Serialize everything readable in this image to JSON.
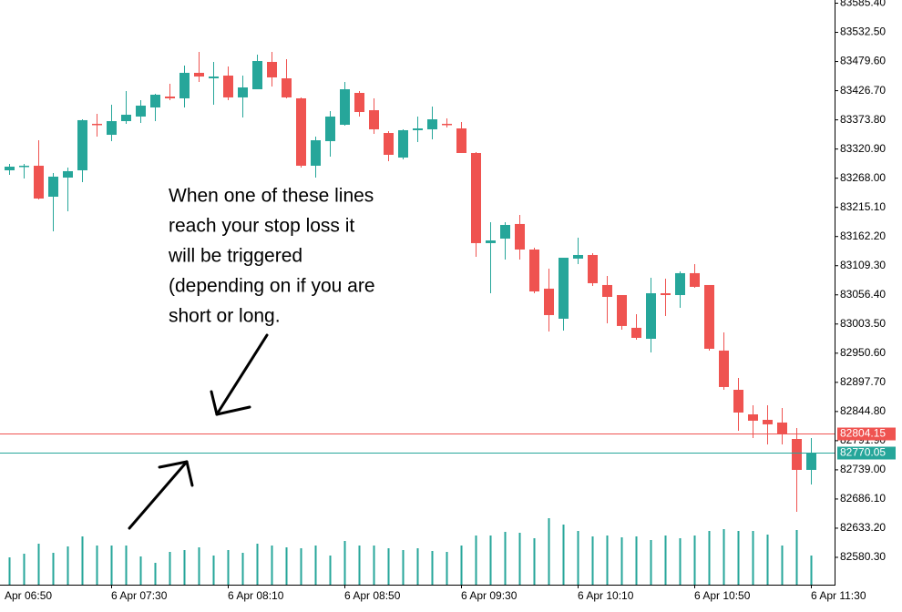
{
  "chart_data": {
    "type": "candlestick",
    "categories": [
      "Apr 06:50",
      null,
      null,
      null,
      null,
      null,
      null,
      null,
      "6 Apr 07:30",
      null,
      null,
      null,
      null,
      null,
      null,
      null,
      "6 Apr 08:10",
      null,
      null,
      null,
      null,
      null,
      null,
      null,
      "6 Apr 08:50",
      null,
      null,
      null,
      null,
      null,
      null,
      null,
      "6 Apr 09:30",
      null,
      null,
      null,
      null,
      null,
      null,
      null,
      "6 Apr 10:10",
      null,
      null,
      null,
      null,
      null,
      null,
      null,
      "6 Apr 10:50",
      null,
      null,
      null,
      null,
      null,
      null,
      null,
      "6 Apr 11:30"
    ],
    "open": [
      null,
      83282.3,
      83288.9,
      83290.6,
      83234.4,
      83269.1,
      83282.3,
      83366.6,
      83346.7,
      83371.5,
      83379.8,
      83396.3,
      83416.1,
      83412.8,
      83459.1,
      83449.1,
      83454.1,
      83414.5,
      83429.3,
      83478.9,
      83449.1,
      83412.8,
      83290.6,
      83335.2,
      83364.9,
      83422.7,
      83391.3,
      83350.0,
      83305.4,
      83355.0,
      83356.6,
      83366.6,
      83358.3,
      83313.7,
      83150.2,
      83158.4,
      83184.9,
      83138.6,
      83067.6,
      83013.1,
      83122.1,
      83128.7,
      83074.2,
      83056.0,
      82996.6,
      82976.7,
      83059.3,
      83056.0,
      83095.7,
      83074.2,
      82955.3,
      82884.2,
      82839.6,
      82829.7,
      82824.8,
      82795.0,
      82738.9
    ],
    "high": [
      null,
      83293.9,
      83293.9,
      83336.8,
      83277.4,
      83287.3,
      83374.8,
      83384.7,
      83401.2,
      83426.0,
      83409.5,
      83421.1,
      83439.2,
      83472.3,
      83497.0,
      83478.9,
      83470.6,
      83454.1,
      83492.1,
      83497.0,
      83483.8,
      83414.5,
      83343.4,
      83389.7,
      83442.5,
      83426.0,
      83412.8,
      83353.3,
      83356.6,
      83379.8,
      83397.9,
      83376.5,
      83369.9,
      83315.4,
      83188.2,
      83188.2,
      83201.4,
      83141.9,
      83103.9,
      83123.7,
      83160.1,
      83132.0,
      83090.7,
      83056.0,
      83021.3,
      83087.4,
      83085.8,
      83099.0,
      83112.2,
      83074.2,
      82988.3,
      82905.7,
      82856.2,
      82856.2,
      82851.2,
      82814.9,
      82796.7
    ],
    "low": [
      null,
      83274.1,
      83267.5,
      83229.5,
      83171.6,
      83208.0,
      83260.8,
      83343.4,
      83335.2,
      83366.6,
      83368.2,
      83371.5,
      83409.5,
      83396.3,
      83442.5,
      83401.2,
      83409.5,
      83378.1,
      83429.3,
      83434.3,
      83412.8,
      83287.3,
      83269.1,
      83307.1,
      83363.3,
      83379.8,
      83348.4,
      83298.8,
      83302.1,
      83333.5,
      83338.5,
      83359.9,
      83313.7,
      83125.4,
      83059.3,
      83120.4,
      83120.4,
      83059.3,
      82989.9,
      82991.6,
      83112.2,
      83072.5,
      83004.8,
      82993.3,
      82975.1,
      82952.0,
      83018.0,
      83032.9,
      83069.2,
      82955.3,
      82884.2,
      82809.9,
      82796.7,
      82785.1,
      82785.1,
      82662.9,
      82712.4
    ],
    "close": [
      null,
      83288.9,
      83290.6,
      83231.1,
      83270.8,
      83280.7,
      83373.2,
      83364.9,
      83371.5,
      83383.1,
      83399.6,
      83419.4,
      83412.8,
      83459.1,
      83452.4,
      83452.4,
      83414.5,
      83432.6,
      83480.5,
      83450.8,
      83414.5,
      83290.6,
      83336.8,
      83379.8,
      83429.3,
      83388.0,
      83356.6,
      83310.4,
      83355.0,
      83358.3,
      83374.8,
      83364.9,
      83313.7,
      83150.2,
      83155.1,
      83183.2,
      83138.6,
      83062.6,
      83019.7,
      83123.7,
      83128.7,
      83077.5,
      83052.7,
      82999.9,
      82978.4,
      83059.3,
      83056.0,
      83095.7,
      83070.9,
      82958.6,
      82889.2,
      82842.9,
      82828.1,
      82821.5,
      82803.3,
      82738.9,
      82770.05
    ],
    "volumes": [
      null,
      30,
      34,
      45,
      35,
      42,
      53,
      43,
      43,
      43,
      31,
      24,
      36,
      38,
      41,
      32,
      38,
      35,
      45,
      43,
      41,
      40,
      43,
      32,
      48,
      43,
      43,
      40,
      38,
      40,
      37,
      36,
      43,
      54,
      54,
      58,
      57,
      51,
      73,
      66,
      59,
      53,
      54,
      52,
      53,
      49,
      54,
      51,
      54,
      59,
      61,
      59,
      59,
      55,
      43,
      60,
      32
    ],
    "colors": {
      "up": "#26a69a",
      "down": "#ef5350",
      "volume": "#26a69a"
    },
    "ylim": [
      82530.7,
      83591.2
    ],
    "yticks": [
      {
        "value": 83585.4,
        "label": "83585.40"
      },
      {
        "value": 83532.5,
        "label": "83532.50"
      },
      {
        "value": 83479.6,
        "label": "83479.60"
      },
      {
        "value": 83426.7,
        "label": "83426.70"
      },
      {
        "value": 83373.8,
        "label": "83373.80"
      },
      {
        "value": 83320.9,
        "label": "83320.90"
      },
      {
        "value": 83268.0,
        "label": "83268.00"
      },
      {
        "value": 83215.1,
        "label": "83215.10"
      },
      {
        "value": 83162.2,
        "label": "83162.20"
      },
      {
        "value": 83109.3,
        "label": "83109.30"
      },
      {
        "value": 83056.4,
        "label": "83056.40"
      },
      {
        "value": 83003.5,
        "label": "83003.50"
      },
      {
        "value": 82950.6,
        "label": "82950.60"
      },
      {
        "value": 82897.7,
        "label": "82897.70"
      },
      {
        "value": 82844.8,
        "label": "82844.80"
      },
      {
        "value": 82791.9,
        "label": "82791.90"
      },
      {
        "value": 82739.0,
        "label": "82739.00"
      },
      {
        "value": 82686.1,
        "label": "82686.10"
      },
      {
        "value": 82633.2,
        "label": "82633.20"
      },
      {
        "value": 82580.3,
        "label": "82580.30"
      }
    ],
    "price_lines": [
      {
        "value": 82804.15,
        "color": "#ef5350"
      },
      {
        "value": 82770.05,
        "color": "#26a69a"
      }
    ],
    "annotation": [
      "When one of these lines",
      "reach your stop loss it",
      "will be triggered",
      "(depending on if you are",
      "short or long."
    ]
  }
}
